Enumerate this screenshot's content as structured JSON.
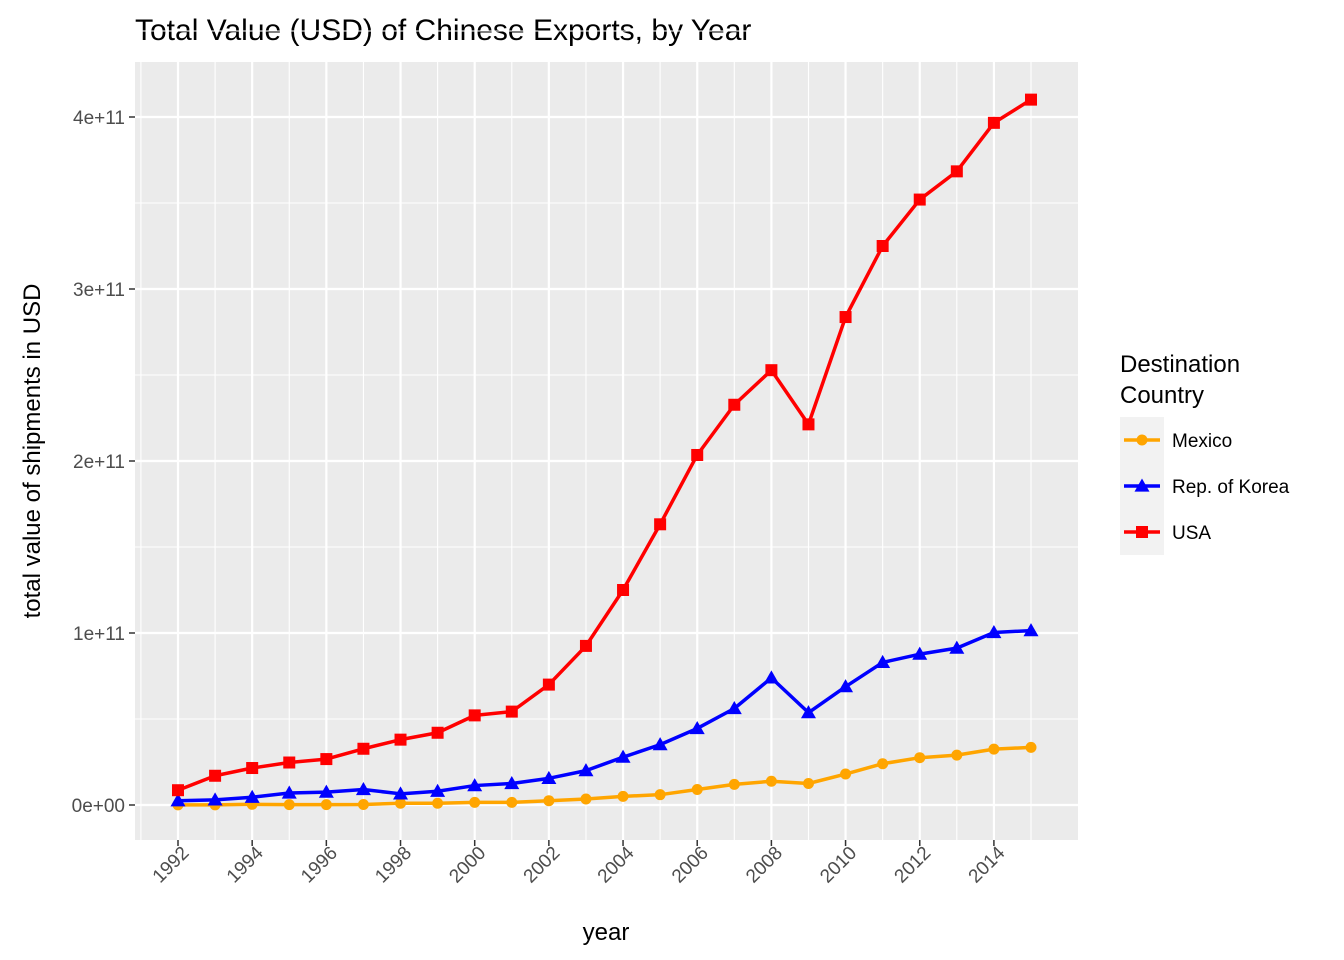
{
  "chart_data": {
    "type": "line",
    "title": "Total Value (USD) of Chinese Exports, by Year",
    "xlabel": "year",
    "ylabel": "total value of shipments in USD",
    "x": [
      1992,
      1993,
      1994,
      1995,
      1996,
      1997,
      1998,
      1999,
      2000,
      2001,
      2002,
      2003,
      2004,
      2005,
      2006,
      2007,
      2008,
      2009,
      2010,
      2011,
      2012,
      2013,
      2014,
      2015
    ],
    "xticks": [
      "1992",
      "1994",
      "1996",
      "1998",
      "2000",
      "2002",
      "2004",
      "2006",
      "2008",
      "2010",
      "2012",
      "2014"
    ],
    "yticks": [
      "0e+00",
      "1e+11",
      "2e+11",
      "3e+11",
      "4e+11"
    ],
    "ylim": [
      0,
      400000000000
    ],
    "xlim": [
      1992,
      2015
    ],
    "grid": true,
    "legend": {
      "title": "Destination\nCountry",
      "title_lines": [
        "Destination",
        "Country"
      ],
      "position": "right"
    },
    "series": [
      {
        "name": "Mexico",
        "color": "#FFA500",
        "marker": "circle",
        "values": [
          100000000.0,
          100000000.0,
          400000000.0,
          200000000.0,
          200000000.0,
          300000000.0,
          1000000000.0,
          1000000000.0,
          1500000000.0,
          1500000000.0,
          2500000000.0,
          3500000000.0,
          5000000000.0,
          6000000000.0,
          9000000000.0,
          12000000000.0,
          13800000000.0,
          12500000000.0,
          18000000000.0,
          24000000000.0,
          27500000000.0,
          29000000000.0,
          32500000000.0,
          33500000000.0
        ]
      },
      {
        "name": "Rep. of Korea",
        "color": "#0000FF",
        "marker": "triangle",
        "values": [
          2500000000.0,
          3000000000.0,
          4500000000.0,
          7000000000.0,
          7500000000.0,
          9000000000.0,
          6500000000.0,
          8000000000.0,
          11300000000.0,
          12500000000.0,
          15500000000.0,
          20000000000.0,
          27800000000.0,
          35100000000.0,
          44500000000.0,
          56100000000.0,
          73900000000.0,
          53700000000.0,
          68800000000.0,
          82900000000.0,
          87700000000.0,
          91200000000.0,
          100300000000.0,
          101400000000.0
        ]
      },
      {
        "name": "USA",
        "color": "#FF0000",
        "marker": "square",
        "values": [
          8600000000.0,
          17000000000.0,
          21500000000.0,
          24700000000.0,
          26700000000.0,
          32700000000.0,
          38000000000.0,
          42000000000.0,
          52100000000.0,
          54300000000.0,
          70000000000.0,
          92500000000.0,
          125000000000.0,
          163200000000.0,
          203500000000.0,
          232700000000.0,
          252800000000.0,
          221300000000.0,
          283700000000.0,
          325000000000.0,
          352000000000.0,
          368400000000.0,
          396600000000.0,
          410100000000.0
        ]
      }
    ]
  }
}
